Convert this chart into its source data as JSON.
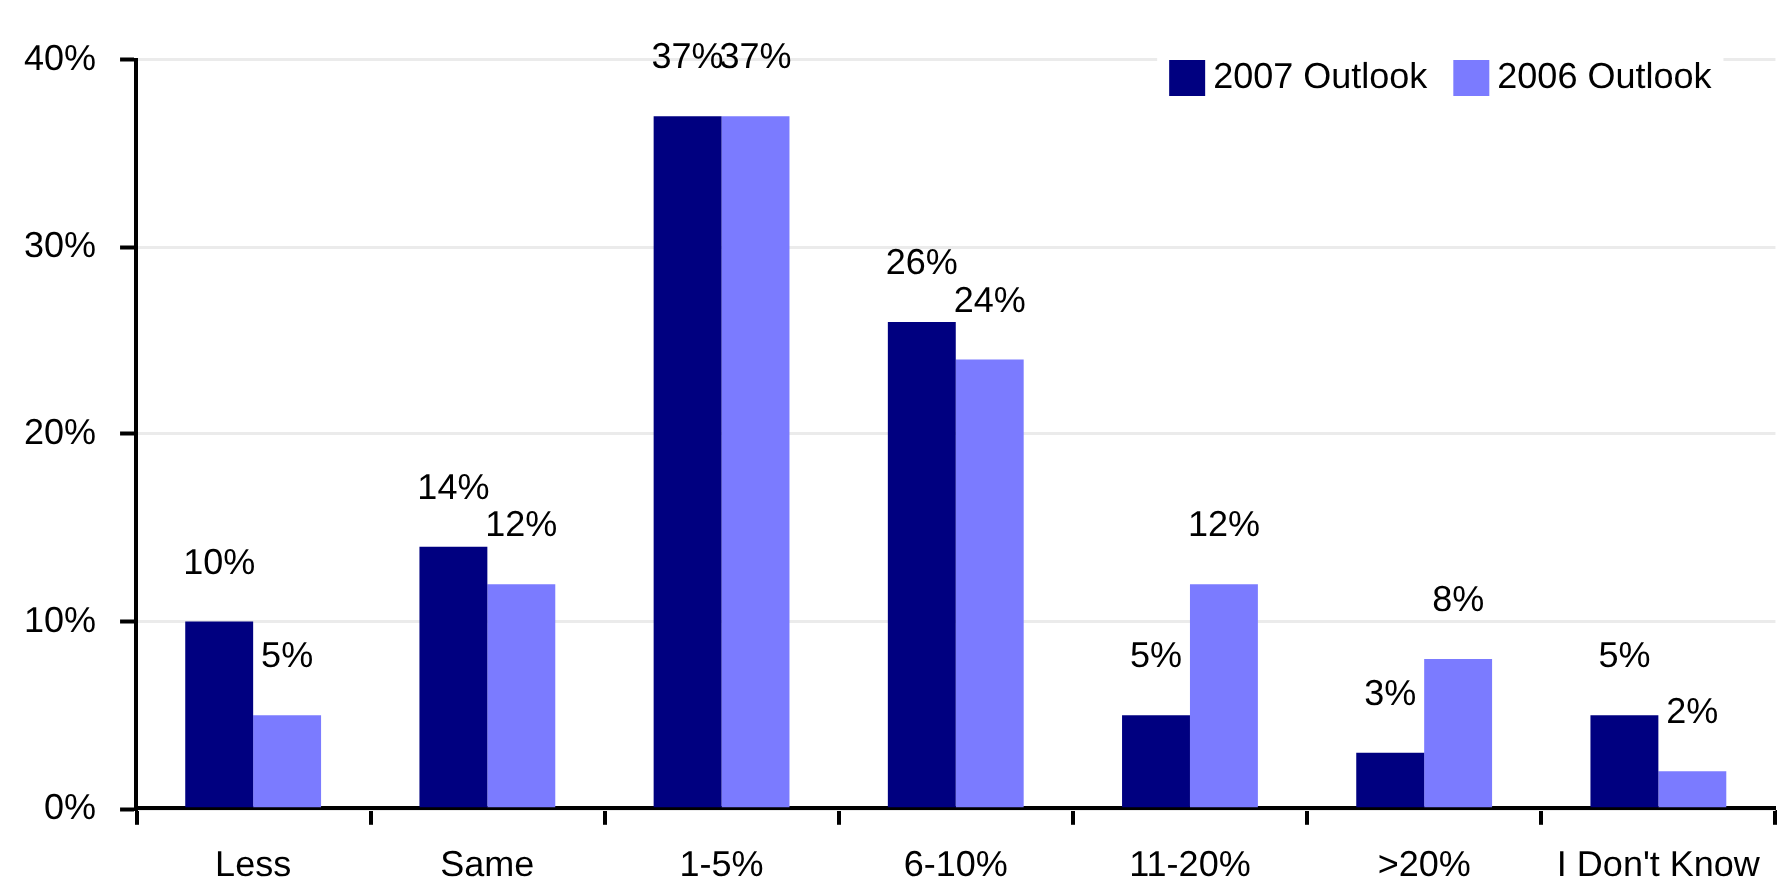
{
  "chart_data": {
    "type": "bar",
    "categories": [
      "Less",
      "Same",
      "1-5%",
      "6-10%",
      "11-20%",
      ">20%",
      "I Don't Know"
    ],
    "series": [
      {
        "name": "2007 Outlook",
        "color": "#000080",
        "values": [
          10,
          14,
          37,
          26,
          5,
          3,
          5
        ],
        "value_labels": [
          "10%",
          "14%",
          "37%",
          "26%",
          "5%",
          "3%",
          "5%"
        ]
      },
      {
        "name": "2006 Outlook",
        "color": "#7b7bff",
        "values": [
          5,
          12,
          37,
          24,
          12,
          8,
          2
        ],
        "value_labels": [
          "5%",
          "12%",
          "37%",
          "24%",
          "12%",
          "8%",
          "2%"
        ]
      }
    ],
    "ylim": [
      0,
      40
    ],
    "yticks": [
      {
        "value": 0,
        "label": "0%"
      },
      {
        "value": 10,
        "label": "10%"
      },
      {
        "value": 20,
        "label": "20%"
      },
      {
        "value": 30,
        "label": "30%"
      },
      {
        "value": 40,
        "label": "40%"
      }
    ],
    "grid": "y",
    "legend": "top right"
  }
}
